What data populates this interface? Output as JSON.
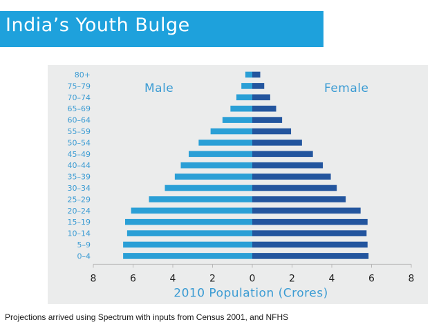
{
  "slide": {
    "title": "India’s Youth Bulge",
    "caption": "Projections arrived using Spectrum with inputs from Census 2001, and NFHS"
  },
  "colors": {
    "title_bar": "#1ea1dc",
    "male": "#2a9fd6",
    "female": "#23559e",
    "panel": "#ebecec",
    "text": "#3a9bd3"
  },
  "chart_data": {
    "type": "bar",
    "orientation": "horizontal-diverging",
    "categories": [
      "80+",
      "75–79",
      "70–74",
      "65–69",
      "60–64",
      "55–59",
      "50–54",
      "45–49",
      "40–44",
      "35–39",
      "30–34",
      "25–29",
      "20–24",
      "15–19",
      "10–14",
      "5–9",
      "0–4"
    ],
    "series": [
      {
        "name": "Male",
        "values": [
          0.35,
          0.55,
          0.8,
          1.1,
          1.5,
          2.1,
          2.7,
          3.2,
          3.6,
          3.9,
          4.4,
          5.2,
          6.1,
          6.4,
          6.3,
          6.5,
          6.5
        ]
      },
      {
        "name": "Female",
        "values": [
          0.4,
          0.6,
          0.9,
          1.2,
          1.5,
          1.95,
          2.5,
          3.05,
          3.55,
          3.95,
          4.25,
          4.7,
          5.45,
          5.8,
          5.75,
          5.8,
          5.85
        ]
      }
    ],
    "x_ticks": [
      "8",
      "6",
      "4",
      "2",
      "0",
      "2",
      "4",
      "6",
      "8"
    ],
    "xlim": [
      -8,
      8
    ],
    "xlabel": "2010 Population (Crores)",
    "legend": [
      "Male",
      "Female"
    ],
    "grid": false
  }
}
